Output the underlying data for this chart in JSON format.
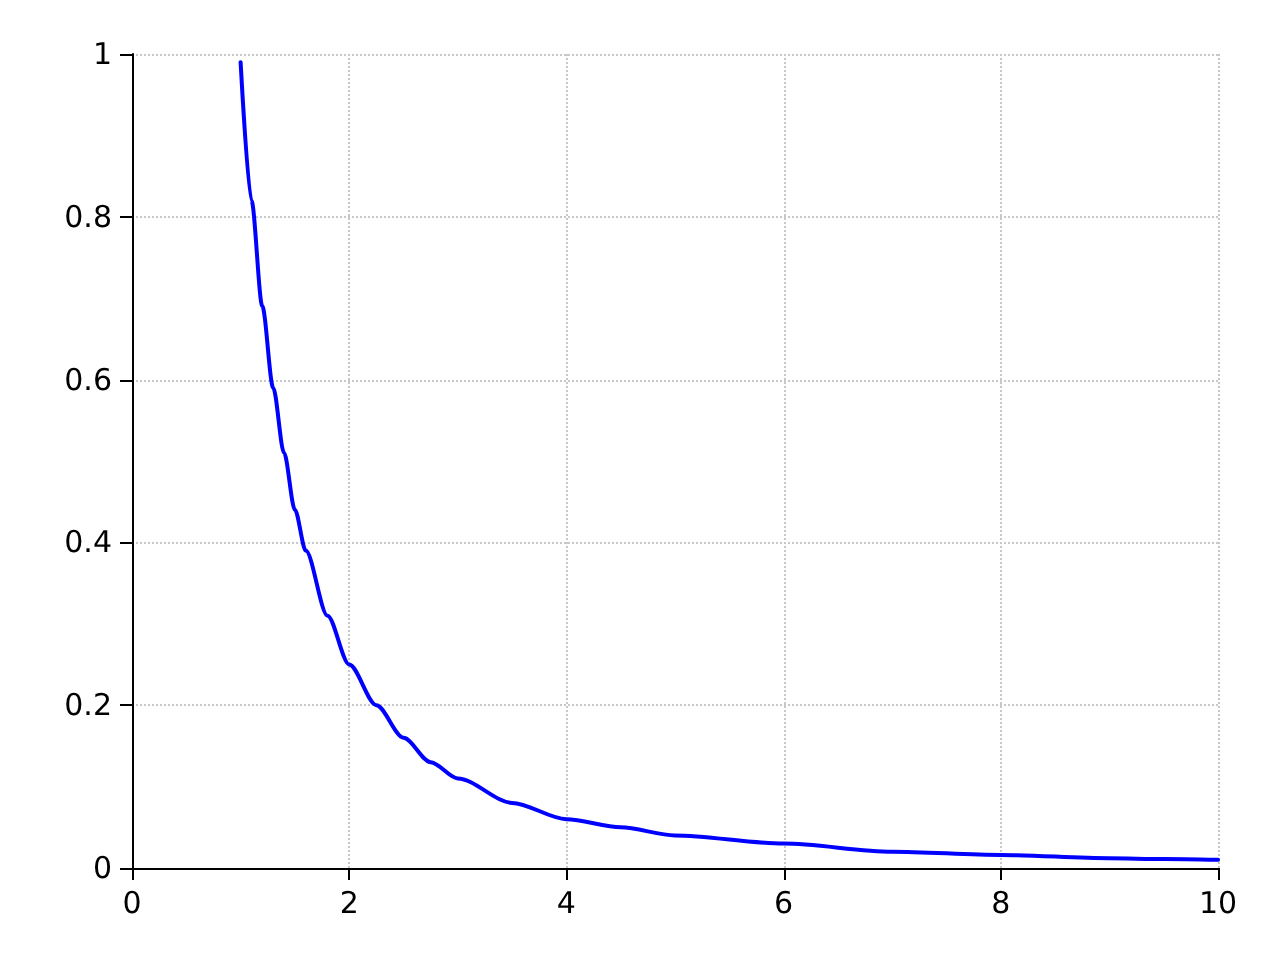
{
  "chart_data": {
    "type": "line",
    "x": [
      1,
      1.1,
      1.2,
      1.3,
      1.4,
      1.5,
      1.6,
      1.8,
      2,
      2.25,
      2.5,
      2.75,
      3,
      3.5,
      4,
      4.5,
      5,
      6,
      7,
      8,
      9,
      9.5,
      10
    ],
    "series": [
      {
        "color": "#0000ff",
        "values": [
          0.99,
          0.82,
          0.69,
          0.59,
          0.51,
          0.44,
          0.39,
          0.31,
          0.25,
          0.2,
          0.16,
          0.13,
          0.11,
          0.08,
          0.06,
          0.05,
          0.04,
          0.03,
          0.02,
          0.016,
          0.012,
          0.011,
          0.01
        ]
      }
    ],
    "xlim": [
      0,
      10
    ],
    "xticks": [
      0,
      2,
      4,
      6,
      8,
      10
    ],
    "ylim": [
      0,
      1
    ],
    "yticks": [
      0,
      0.2,
      0.4,
      0.6,
      0.8,
      1
    ],
    "grid": true,
    "marker": "none",
    "line_style": "solid"
  }
}
